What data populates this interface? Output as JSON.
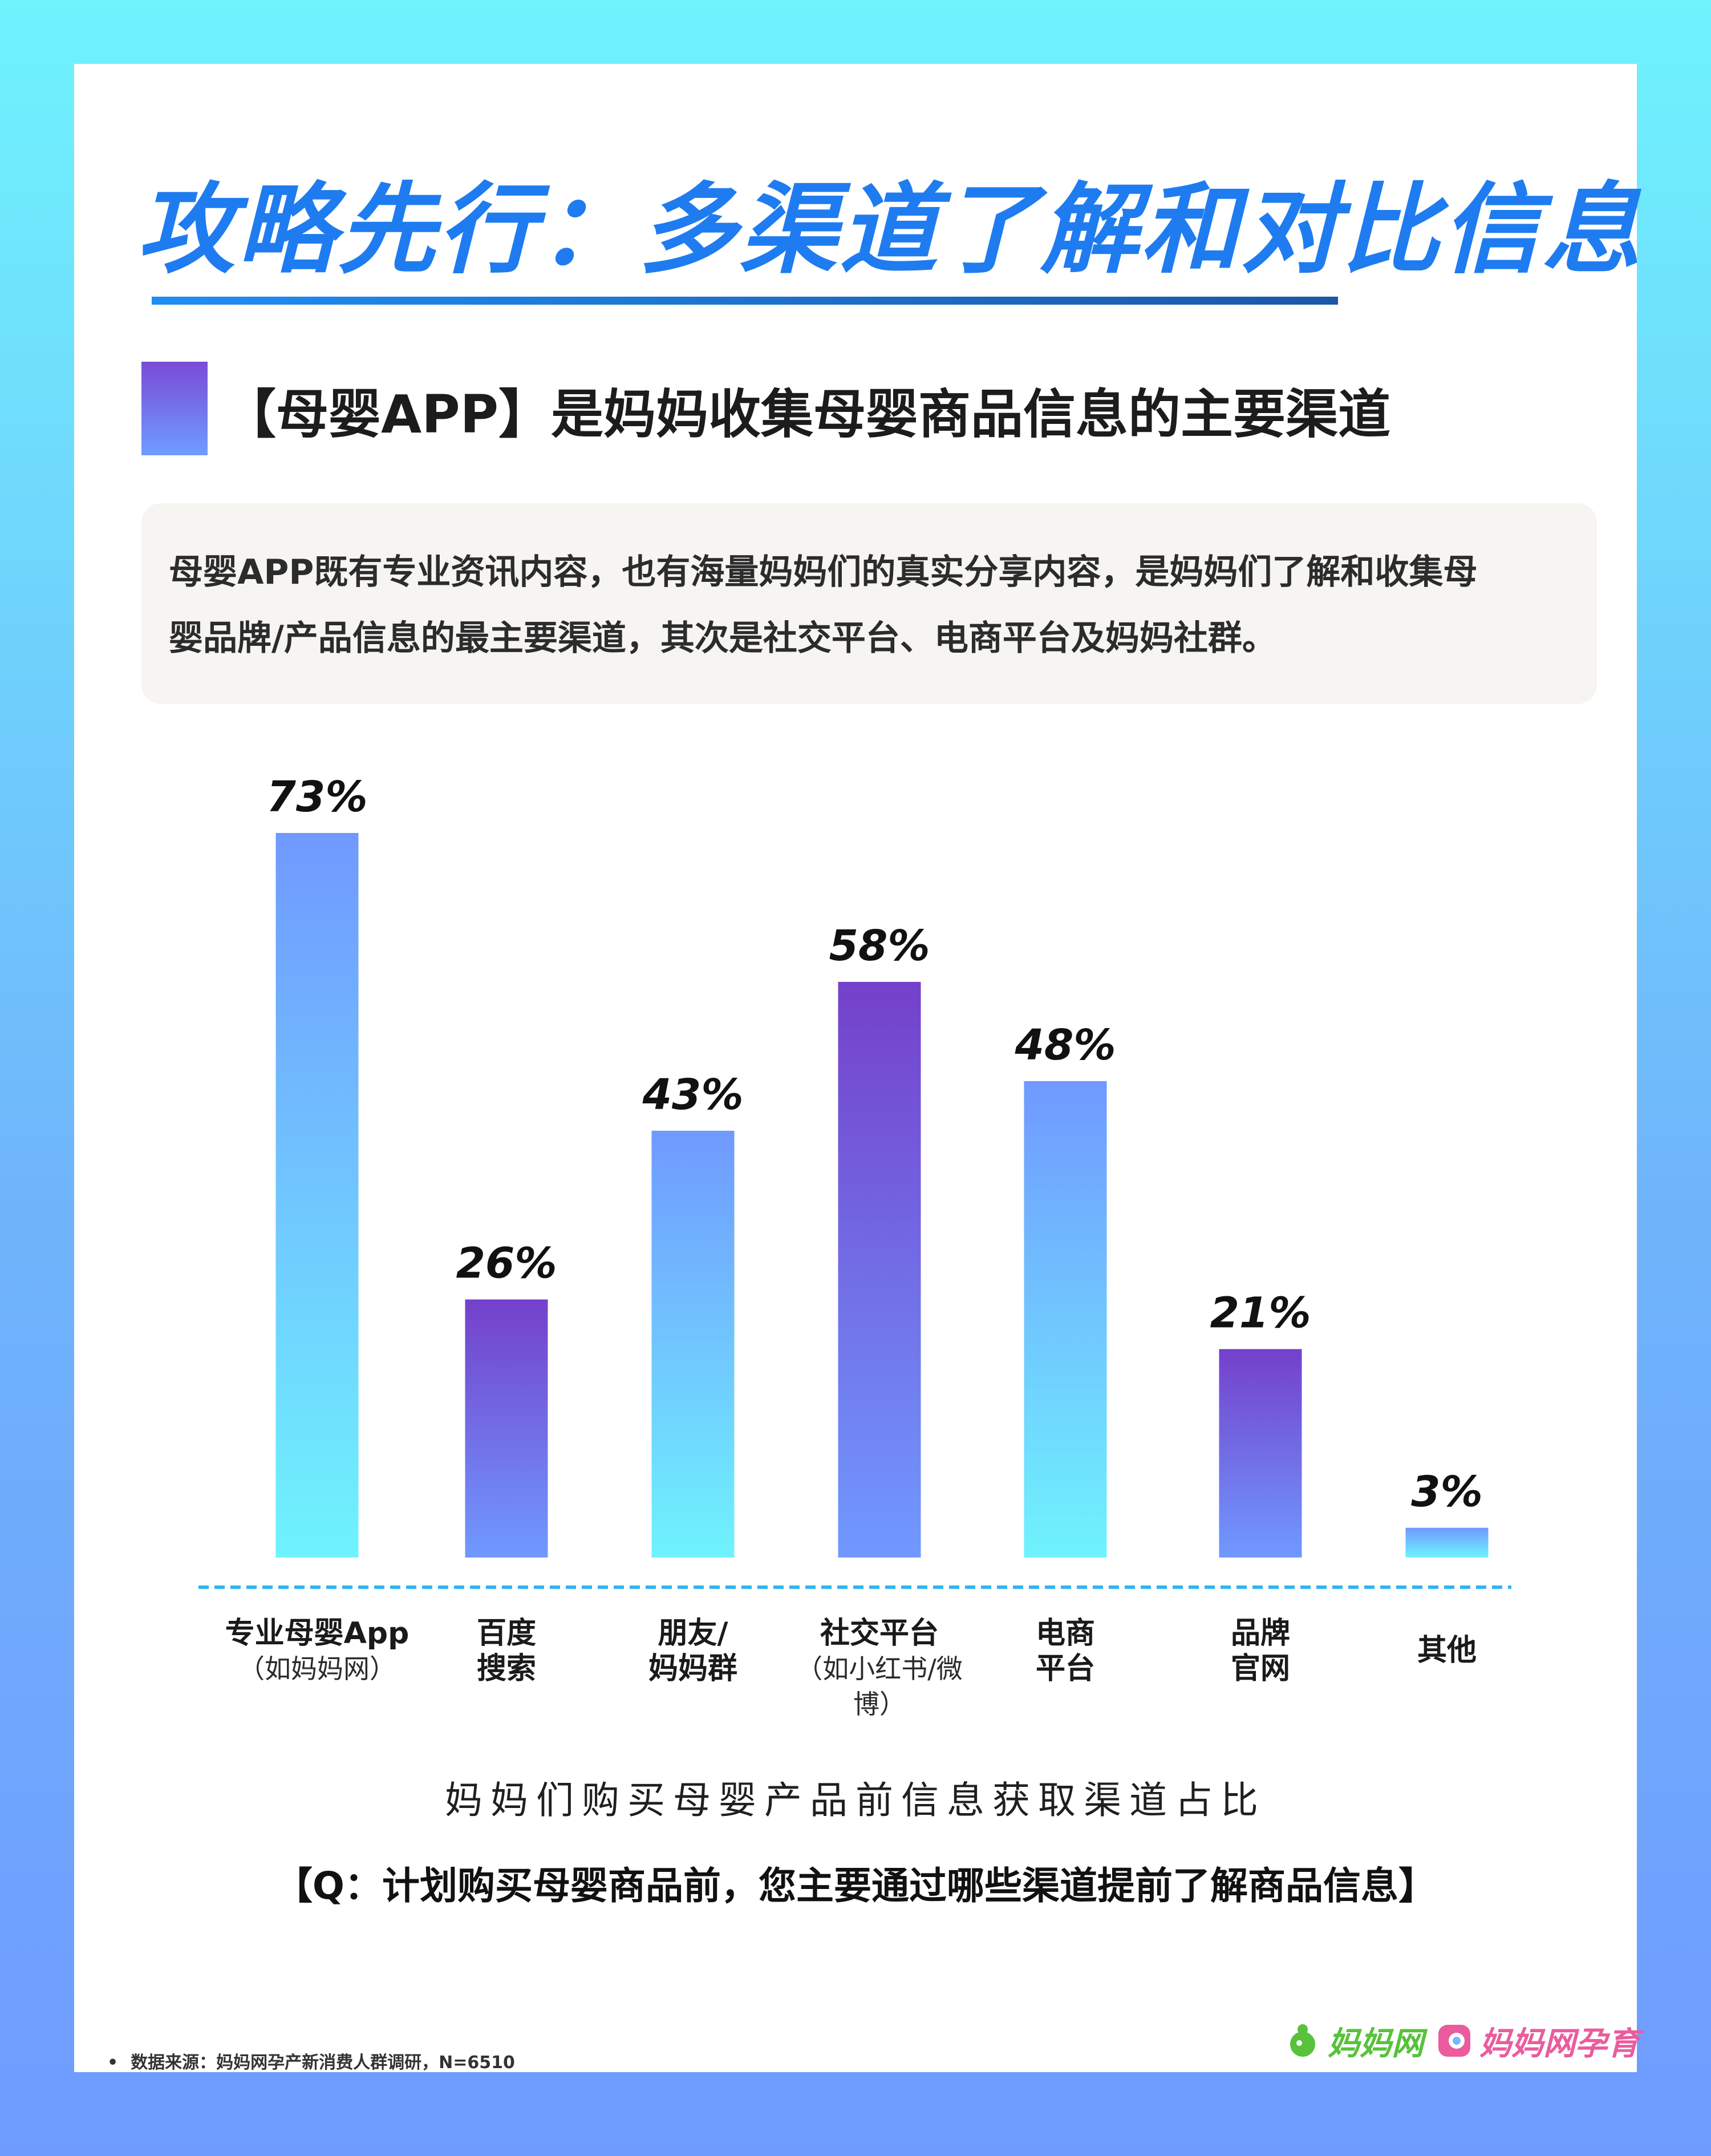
{
  "header": {
    "title": "攻略先行：多渠道了解和对比信息",
    "subtitle": "【母婴APP】是妈妈收集母婴商品信息的主要渠道"
  },
  "description": {
    "line1": "母婴APP既有专业资讯内容，也有海量妈妈们的真实分享内容，是妈妈们了解和收集母",
    "line2": "婴品牌/产品信息的最主要渠道，其次是社交平台、电商平台及妈妈社群。"
  },
  "chart_data": {
    "type": "bar",
    "title": "妈妈们购买母婴产品前信息获取渠道占比",
    "categories": [
      {
        "main": "专业母婴App",
        "sub": "（如妈妈网）"
      },
      {
        "main": "百度",
        "main2": "搜索"
      },
      {
        "main": "朋友/",
        "main2": "妈妈群"
      },
      {
        "main": "社交平台",
        "sub": "（如小红书/微博）"
      },
      {
        "main": "电商",
        "main2": "平台"
      },
      {
        "main": "品牌",
        "main2": "官网"
      },
      {
        "main": "其他"
      }
    ],
    "values": [
      73,
      26,
      43,
      58,
      48,
      21,
      3
    ],
    "value_labels": [
      "73%",
      "26%",
      "43%",
      "58%",
      "48%",
      "21%",
      "3%"
    ],
    "unit": "%",
    "ylim": [
      0,
      73
    ],
    "grid": false,
    "bar_gradients": [
      "cyan-blue",
      "purple-blue",
      "blue-cyan",
      "purple-blue",
      "blue-cyan",
      "purple-blue",
      "blue-cyan"
    ],
    "colors": {
      "cyan": "#6ff3fd",
      "blue": "#7099ff",
      "purple": "#7440cb"
    }
  },
  "footer": {
    "caption": "妈妈们购买母婴产品前信息获取渠道占比",
    "question": "【Q：计划购买母婴商品前，您主要通过哪些渠道提前了解商品信息】",
    "bullet": "•",
    "source": "数据来源：妈妈网孕产新消费人群调研，N=6510",
    "logo1": "妈妈网",
    "logo2": "妈妈网孕育"
  }
}
